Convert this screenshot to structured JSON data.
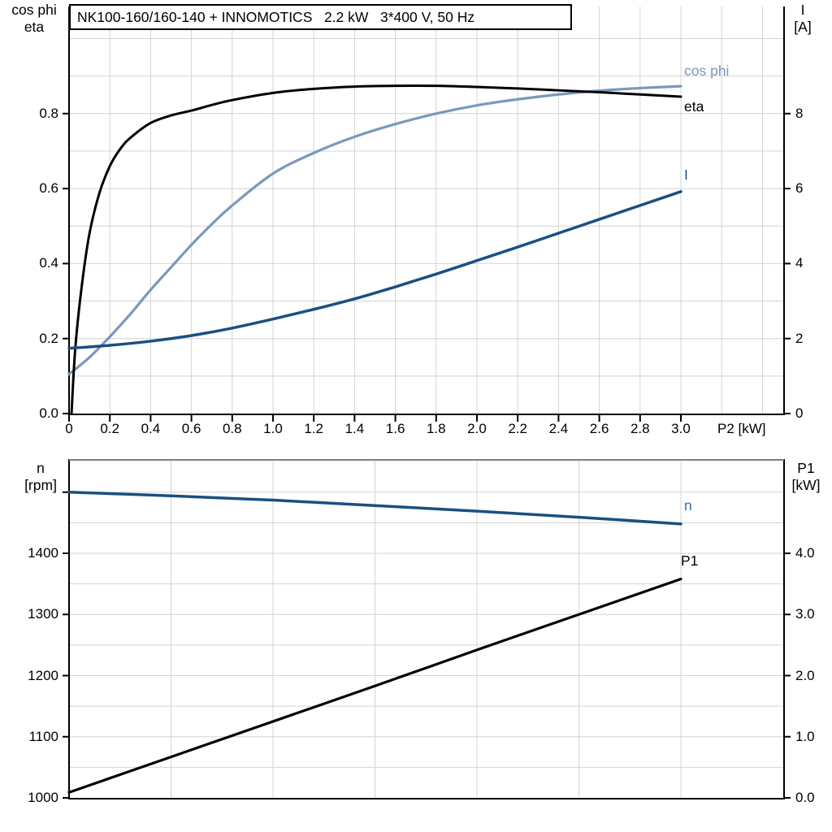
{
  "title_box": {
    "text": "NK100-160/160-140 + INNOMOTICS   2.2 kW   3*400 V, 50 Hz"
  },
  "colors": {
    "eta_curve": "#000000",
    "cos_phi_curve": "#7a98bc",
    "current_curve": "#1a4f82",
    "speed_curve": "#1a4f82",
    "p1_curve": "#000000",
    "cos_phi_label": "#7a98bc",
    "eta_label": "#000000",
    "current_label": "#1a4f82",
    "speed_label": "#2e74b5",
    "p1_label": "#000000",
    "grid": "#d4d4d4",
    "axis": "#000000",
    "bottom_panel_top_border": "#808080"
  },
  "top_chart": {
    "left_axis_title": [
      "cos phi",
      "eta"
    ],
    "right_axis_title": [
      "I",
      "[A]"
    ],
    "x_axis_title": "P2 [kW]",
    "left_ticks": {
      "labels": [
        "0.0",
        "0.2",
        "0.4",
        "0.6",
        "0.8"
      ],
      "values": [
        0,
        0.2,
        0.4,
        0.6,
        0.8
      ]
    },
    "right_ticks": {
      "labels": [
        "0",
        "2",
        "4",
        "6",
        "8"
      ],
      "values": [
        0,
        2,
        4,
        6,
        8
      ]
    },
    "x_ticks": {
      "labels": [
        "0",
        "0.2",
        "0.4",
        "0.6",
        "0.8",
        "1.0",
        "1.2",
        "1.4",
        "1.6",
        "1.8",
        "2.0",
        "2.2",
        "2.4",
        "2.6",
        "2.8",
        "3.0"
      ],
      "values": [
        0,
        0.2,
        0.4,
        0.6,
        0.8,
        1.0,
        1.2,
        1.4,
        1.6,
        1.8,
        2.0,
        2.2,
        2.4,
        2.6,
        2.8,
        3.0
      ]
    },
    "curve_labels": {
      "cos_phi": "cos phi",
      "eta": "eta",
      "current": "I"
    }
  },
  "bottom_chart": {
    "left_axis_title": [
      "n",
      "[rpm]"
    ],
    "right_axis_title": [
      "P1",
      "[kW]"
    ],
    "left_ticks": {
      "labels": [
        "1400",
        "1300",
        "1200",
        "1100",
        "1000"
      ],
      "values": [
        1400,
        1300,
        1200,
        1100,
        1000
      ],
      "unlabeled_values": [
        1500
      ]
    },
    "right_ticks": {
      "labels": [
        "4.0",
        "3.0",
        "2.0",
        "1.0",
        "0.0"
      ],
      "values": [
        4,
        3,
        2,
        1,
        0
      ]
    },
    "curve_labels": {
      "speed": "n",
      "p1": "P1"
    }
  },
  "chart_data": [
    {
      "type": "line",
      "title": "NK100-160/160-140 + INNOMOTICS 2.2 kW 3*400 V, 50 Hz",
      "xlabel": "P2 [kW]",
      "x_range": [
        0,
        3.5
      ],
      "left_axis": {
        "label": "cos phi / eta",
        "range": [
          0,
          1.0
        ],
        "grid_step": 0.1
      },
      "right_axis": {
        "label": "I [A]",
        "range": [
          0,
          10
        ],
        "tick_step": 2
      },
      "x_grid_step": 0.2,
      "legend_position": "end-of-curve",
      "series": [
        {
          "name": "eta",
          "axis": "left",
          "x": [
            0.012,
            0.03,
            0.06,
            0.1,
            0.15,
            0.2,
            0.25,
            0.3,
            0.4,
            0.5,
            0.6,
            0.7,
            0.8,
            1.0,
            1.2,
            1.4,
            1.6,
            1.8,
            2.0,
            2.2,
            2.4,
            2.6,
            2.8,
            3.0
          ],
          "y": [
            0,
            0.17,
            0.33,
            0.48,
            0.59,
            0.66,
            0.705,
            0.735,
            0.775,
            0.795,
            0.808,
            0.823,
            0.836,
            0.855,
            0.866,
            0.872,
            0.874,
            0.874,
            0.871,
            0.867,
            0.862,
            0.857,
            0.851,
            0.845
          ]
        },
        {
          "name": "cos phi",
          "axis": "left",
          "x": [
            0,
            0.1,
            0.2,
            0.3,
            0.4,
            0.5,
            0.6,
            0.7,
            0.8,
            1.0,
            1.2,
            1.4,
            1.6,
            1.8,
            2.0,
            2.2,
            2.4,
            2.6,
            2.8,
            3.0
          ],
          "y": [
            0.105,
            0.15,
            0.205,
            0.265,
            0.33,
            0.39,
            0.45,
            0.505,
            0.555,
            0.64,
            0.695,
            0.738,
            0.772,
            0.8,
            0.822,
            0.838,
            0.851,
            0.861,
            0.868,
            0.873
          ]
        },
        {
          "name": "I",
          "axis": "right",
          "x": [
            0,
            0.2,
            0.4,
            0.6,
            0.8,
            1.0,
            1.2,
            1.4,
            1.6,
            1.8,
            2.0,
            2.2,
            2.4,
            2.6,
            2.8,
            3.0
          ],
          "y": [
            1.74,
            1.82,
            1.93,
            2.08,
            2.28,
            2.52,
            2.78,
            3.06,
            3.38,
            3.72,
            4.08,
            4.44,
            4.81,
            5.18,
            5.55,
            5.92
          ]
        }
      ]
    },
    {
      "type": "line",
      "xlabel": "P2 [kW]",
      "x_range": [
        0,
        3.5
      ],
      "left_axis": {
        "label": "n [rpm]",
        "range": [
          1000,
          1557
        ],
        "grid_step": 50
      },
      "right_axis": {
        "label": "P1 [kW]",
        "range": [
          0,
          5.57
        ],
        "tick_step": 1
      },
      "x_grid_step": 0.5,
      "legend_position": "end-of-curve",
      "series": [
        {
          "name": "n",
          "axis": "left",
          "x": [
            0,
            0.5,
            1.0,
            1.5,
            2.0,
            2.5,
            3.0
          ],
          "y": [
            1500,
            1494,
            1487,
            1478,
            1469,
            1459,
            1448
          ]
        },
        {
          "name": "P1",
          "axis": "right",
          "x": [
            0,
            0.5,
            1.0,
            1.5,
            2.0,
            2.5,
            3.0
          ],
          "y": [
            0.09,
            0.67,
            1.25,
            1.83,
            2.42,
            3.0,
            3.58
          ]
        }
      ]
    }
  ]
}
